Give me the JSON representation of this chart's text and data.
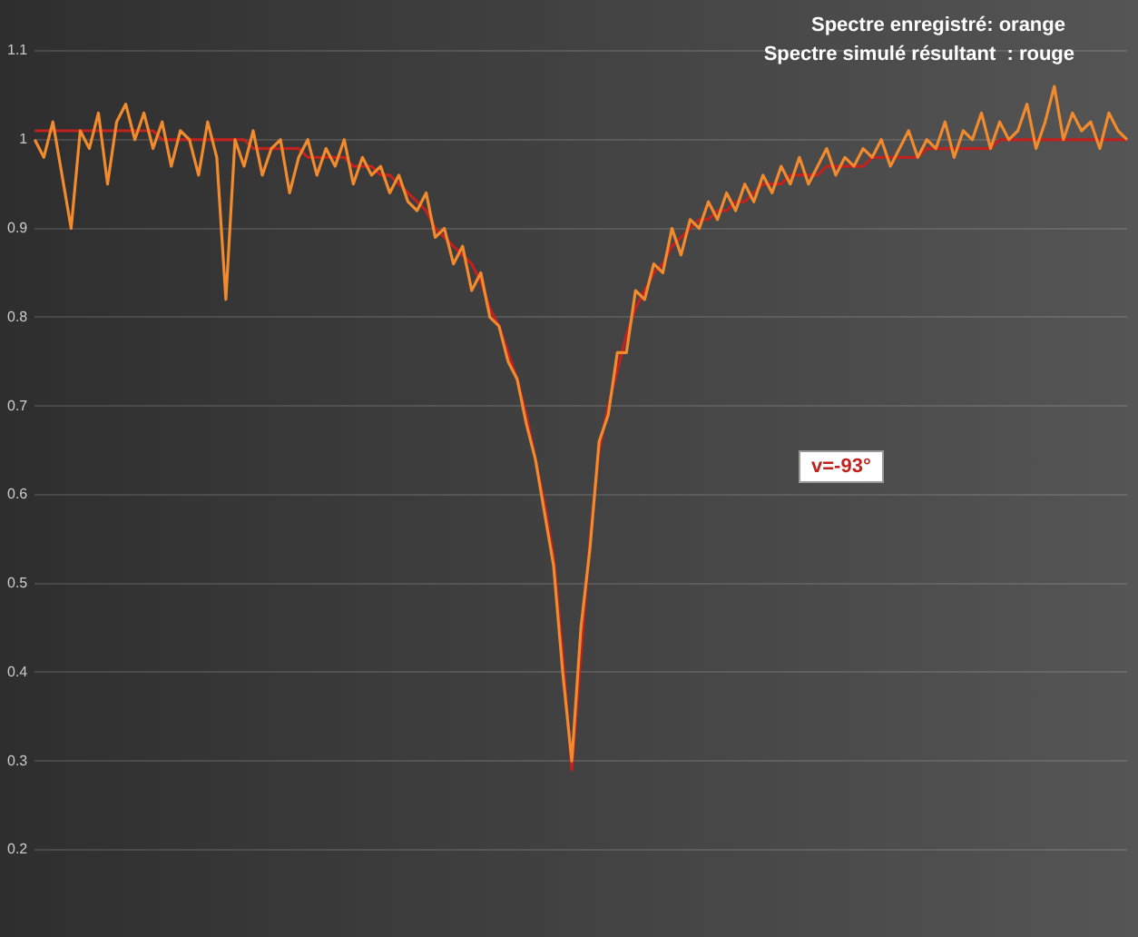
{
  "chart_data": {
    "type": "line",
    "categories": [
      null,
      null,
      null,
      null,
      null,
      null,
      null,
      null,
      null,
      null,
      null,
      null,
      null,
      null,
      null,
      null,
      null,
      null,
      null,
      null,
      null,
      null,
      null,
      null,
      null,
      null,
      null,
      null,
      null,
      null,
      null,
      null,
      null,
      null,
      null,
      null,
      null,
      null,
      null,
      null,
      null,
      null,
      null,
      null,
      null,
      null,
      null,
      null,
      null,
      null,
      null,
      null,
      null,
      null,
      null,
      null,
      null,
      null,
      null,
      null,
      null,
      null,
      null,
      null,
      null,
      null,
      null,
      null,
      null,
      null,
      null,
      null,
      null,
      null,
      null,
      null,
      null,
      null,
      null,
      null,
      null,
      null,
      null,
      null,
      null,
      null,
      null,
      null,
      null,
      null,
      null,
      null,
      null,
      null,
      null,
      null,
      null,
      null,
      null,
      null,
      null,
      null,
      null,
      null,
      null,
      null,
      null,
      null,
      null,
      null,
      null,
      null,
      null,
      null,
      null,
      null,
      null,
      null,
      null,
      null,
      null
    ],
    "series": [
      {
        "color": "#f28a2e",
        "values": [
          1.0,
          0.98,
          1.02,
          0.96,
          0.9,
          1.01,
          0.99,
          1.03,
          0.95,
          1.02,
          1.04,
          1.0,
          1.03,
          0.99,
          1.02,
          0.97,
          1.01,
          1.0,
          0.96,
          1.02,
          0.98,
          0.82,
          1.0,
          0.97,
          1.01,
          0.96,
          0.99,
          1.0,
          0.94,
          0.98,
          1.0,
          0.96,
          0.99,
          0.97,
          1.0,
          0.95,
          0.98,
          0.96,
          0.97,
          0.94,
          0.96,
          0.93,
          0.92,
          0.94,
          0.89,
          0.9,
          0.86,
          0.88,
          0.83,
          0.85,
          0.8,
          0.79,
          0.75,
          0.73,
          0.68,
          0.64,
          0.58,
          0.52,
          0.4,
          0.3,
          0.45,
          0.54,
          0.66,
          0.69,
          0.76,
          0.76,
          0.83,
          0.82,
          0.86,
          0.85,
          0.9,
          0.87,
          0.91,
          0.9,
          0.93,
          0.91,
          0.94,
          0.92,
          0.95,
          0.93,
          0.96,
          0.94,
          0.97,
          0.95,
          0.98,
          0.95,
          0.97,
          0.99,
          0.96,
          0.98,
          0.97,
          0.99,
          0.98,
          1.0,
          0.97,
          0.99,
          1.01,
          0.98,
          1.0,
          0.99,
          1.02,
          0.98,
          1.01,
          1.0,
          1.03,
          0.99,
          1.02,
          1.0,
          1.01,
          1.04,
          0.99,
          1.02,
          1.06,
          1.0,
          1.03,
          1.01,
          1.02,
          0.99,
          1.03,
          1.01,
          1.0
        ]
      },
      {
        "color": "#c0221f",
        "values": [
          1.01,
          1.01,
          1.01,
          1.01,
          1.01,
          1.01,
          1.01,
          1.01,
          1.01,
          1.01,
          1.01,
          1.01,
          1.01,
          1.01,
          1.0,
          1.0,
          1.0,
          1.0,
          1.0,
          1.0,
          1.0,
          1.0,
          1.0,
          1.0,
          0.99,
          0.99,
          0.99,
          0.99,
          0.99,
          0.99,
          0.98,
          0.98,
          0.98,
          0.98,
          0.98,
          0.97,
          0.97,
          0.97,
          0.96,
          0.96,
          0.95,
          0.94,
          0.93,
          0.92,
          0.9,
          0.89,
          0.88,
          0.87,
          0.86,
          0.84,
          0.81,
          0.79,
          0.76,
          0.73,
          0.69,
          0.64,
          0.59,
          0.53,
          0.42,
          0.29,
          0.42,
          0.55,
          0.65,
          0.7,
          0.74,
          0.78,
          0.81,
          0.83,
          0.85,
          0.86,
          0.88,
          0.89,
          0.9,
          0.91,
          0.91,
          0.92,
          0.92,
          0.93,
          0.93,
          0.94,
          0.95,
          0.95,
          0.95,
          0.96,
          0.96,
          0.96,
          0.96,
          0.97,
          0.97,
          0.97,
          0.97,
          0.97,
          0.98,
          0.98,
          0.98,
          0.98,
          0.98,
          0.98,
          0.99,
          0.99,
          0.99,
          0.99,
          0.99,
          0.99,
          0.99,
          0.99,
          1.0,
          1.0,
          1.0,
          1.0,
          1.0,
          1.0,
          1.0,
          1.0,
          1.0,
          1.0,
          1.0,
          1.0,
          1.0,
          1.0,
          1.0
        ]
      }
    ],
    "ylim": [
      0.2,
      1.1
    ],
    "yticks": [
      0.2,
      0.3,
      0.4,
      0.5,
      0.6,
      0.7,
      0.8,
      0.9,
      1,
      1.1
    ],
    "grid": "y",
    "marker": "none",
    "line_style": "solid",
    "legend": false,
    "annotations": [
      "Spectre enregistré: orange",
      "Spectre simulé résultant  : rouge",
      "v=-93°"
    ]
  }
}
